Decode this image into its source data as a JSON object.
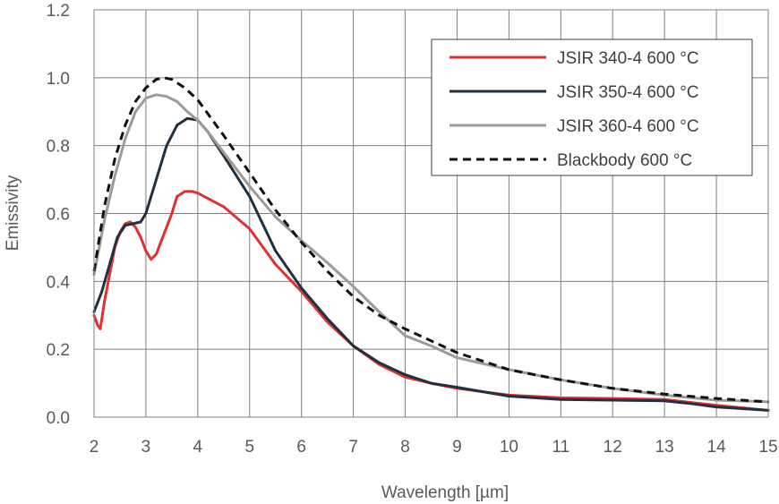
{
  "chart_data": {
    "type": "line",
    "xlabel": "Wavelength [µm]",
    "ylabel": "Emissivity",
    "xlim": [
      2,
      15
    ],
    "ylim": [
      0,
      1.2
    ],
    "xticks": [
      "2",
      "3",
      "4",
      "5",
      "6",
      "7",
      "8",
      "9",
      "10",
      "11",
      "12",
      "13",
      "14",
      "15"
    ],
    "yticks": [
      "0.0",
      "0.2",
      "0.4",
      "0.6",
      "0.8",
      "1.0",
      "1.2"
    ],
    "grid": true,
    "legend_position": "top-right",
    "series": [
      {
        "name": "JSIR 340-4 600 °C",
        "color": "#e03030",
        "dash": "solid",
        "points": [
          [
            2.0,
            0.3
          ],
          [
            2.07,
            0.27
          ],
          [
            2.12,
            0.26
          ],
          [
            2.2,
            0.34
          ],
          [
            2.3,
            0.42
          ],
          [
            2.4,
            0.5
          ],
          [
            2.5,
            0.545
          ],
          [
            2.6,
            0.57
          ],
          [
            2.7,
            0.575
          ],
          [
            2.8,
            0.56
          ],
          [
            2.9,
            0.53
          ],
          [
            3.0,
            0.49
          ],
          [
            3.1,
            0.465
          ],
          [
            3.2,
            0.48
          ],
          [
            3.3,
            0.52
          ],
          [
            3.4,
            0.56
          ],
          [
            3.5,
            0.6
          ],
          [
            3.6,
            0.65
          ],
          [
            3.75,
            0.665
          ],
          [
            3.9,
            0.665
          ],
          [
            4.0,
            0.66
          ],
          [
            4.5,
            0.62
          ],
          [
            5.0,
            0.555
          ],
          [
            5.5,
            0.45
          ],
          [
            6.0,
            0.37
          ],
          [
            6.5,
            0.28
          ],
          [
            7.0,
            0.21
          ],
          [
            7.5,
            0.155
          ],
          [
            8.0,
            0.118
          ],
          [
            8.5,
            0.1
          ],
          [
            9.0,
            0.085
          ],
          [
            10.0,
            0.065
          ],
          [
            11.0,
            0.057
          ],
          [
            12.0,
            0.055
          ],
          [
            13.0,
            0.052
          ],
          [
            14.0,
            0.035
          ],
          [
            15.0,
            0.02
          ]
        ]
      },
      {
        "name": "JSIR 350-4 600 °C",
        "color": "#203040",
        "dash": "solid",
        "points": [
          [
            2.0,
            0.31
          ],
          [
            2.15,
            0.37
          ],
          [
            2.3,
            0.45
          ],
          [
            2.45,
            0.53
          ],
          [
            2.6,
            0.565
          ],
          [
            2.75,
            0.57
          ],
          [
            2.9,
            0.575
          ],
          [
            3.0,
            0.6
          ],
          [
            3.2,
            0.7
          ],
          [
            3.4,
            0.8
          ],
          [
            3.6,
            0.86
          ],
          [
            3.8,
            0.88
          ],
          [
            4.0,
            0.875
          ],
          [
            4.2,
            0.84
          ],
          [
            4.5,
            0.77
          ],
          [
            5.0,
            0.65
          ],
          [
            5.5,
            0.49
          ],
          [
            6.0,
            0.38
          ],
          [
            6.5,
            0.29
          ],
          [
            7.0,
            0.21
          ],
          [
            7.5,
            0.16
          ],
          [
            8.0,
            0.125
          ],
          [
            8.5,
            0.1
          ],
          [
            9.0,
            0.088
          ],
          [
            9.5,
            0.075
          ],
          [
            10.0,
            0.062
          ],
          [
            11.0,
            0.052
          ],
          [
            12.0,
            0.05
          ],
          [
            13.0,
            0.048
          ],
          [
            13.5,
            0.04
          ],
          [
            14.0,
            0.03
          ],
          [
            15.0,
            0.02
          ]
        ]
      },
      {
        "name": "JSIR 360-4 600 °C",
        "color": "#a09a96",
        "dash": "solid",
        "points": [
          [
            2.0,
            0.42
          ],
          [
            2.2,
            0.58
          ],
          [
            2.4,
            0.71
          ],
          [
            2.6,
            0.82
          ],
          [
            2.8,
            0.9
          ],
          [
            3.0,
            0.94
          ],
          [
            3.2,
            0.95
          ],
          [
            3.4,
            0.945
          ],
          [
            3.6,
            0.93
          ],
          [
            3.8,
            0.9
          ],
          [
            4.0,
            0.875
          ],
          [
            4.2,
            0.84
          ],
          [
            4.5,
            0.78
          ],
          [
            5.0,
            0.68
          ],
          [
            5.5,
            0.59
          ],
          [
            6.0,
            0.52
          ],
          [
            6.5,
            0.455
          ],
          [
            7.0,
            0.385
          ],
          [
            7.5,
            0.31
          ],
          [
            8.0,
            0.24
          ],
          [
            8.5,
            0.21
          ],
          [
            9.0,
            0.175
          ],
          [
            10.0,
            0.14
          ],
          [
            11.0,
            0.11
          ],
          [
            12.0,
            0.085
          ],
          [
            13.0,
            0.065
          ],
          [
            14.0,
            0.05
          ],
          [
            15.0,
            0.045
          ]
        ]
      },
      {
        "name": "Blackbody 600 °C",
        "color": "#111111",
        "dash": "dashed",
        "points": [
          [
            2.0,
            0.43
          ],
          [
            2.2,
            0.62
          ],
          [
            2.4,
            0.76
          ],
          [
            2.6,
            0.86
          ],
          [
            2.8,
            0.93
          ],
          [
            3.0,
            0.97
          ],
          [
            3.2,
            0.995
          ],
          [
            3.35,
            1.0
          ],
          [
            3.5,
            0.995
          ],
          [
            3.75,
            0.97
          ],
          [
            4.0,
            0.935
          ],
          [
            4.5,
            0.83
          ],
          [
            5.0,
            0.72
          ],
          [
            5.5,
            0.61
          ],
          [
            6.0,
            0.515
          ],
          [
            6.5,
            0.43
          ],
          [
            7.0,
            0.355
          ],
          [
            7.5,
            0.3
          ],
          [
            8.0,
            0.26
          ],
          [
            8.5,
            0.225
          ],
          [
            9.0,
            0.19
          ],
          [
            10.0,
            0.14
          ],
          [
            11.0,
            0.11
          ],
          [
            12.0,
            0.085
          ],
          [
            13.0,
            0.068
          ],
          [
            14.0,
            0.055
          ],
          [
            15.0,
            0.045
          ]
        ]
      }
    ]
  }
}
